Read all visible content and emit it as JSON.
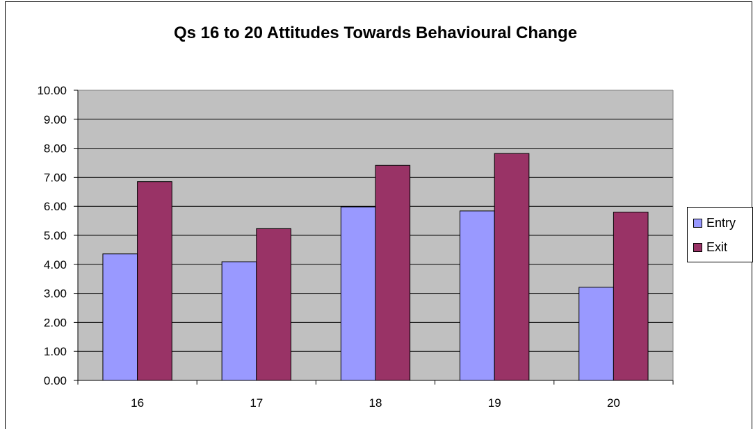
{
  "chart_data": {
    "type": "bar",
    "title": "Qs 16 to 20 Attitudes Towards Behavioural Change",
    "xlabel": "",
    "ylabel": "",
    "categories": [
      "16",
      "17",
      "18",
      "19",
      "20"
    ],
    "series": [
      {
        "name": "Entry",
        "color": "#9999ff",
        "values": [
          4.36,
          4.09,
          5.98,
          5.84,
          3.21
        ]
      },
      {
        "name": "Exit",
        "color": "#993366",
        "values": [
          6.85,
          5.23,
          7.41,
          7.82,
          5.8
        ]
      }
    ],
    "ylim": [
      0,
      10
    ],
    "ytick_step": 1,
    "ytick_labels": [
      "0.00",
      "1.00",
      "2.00",
      "3.00",
      "4.00",
      "5.00",
      "6.00",
      "7.00",
      "8.00",
      "9.00",
      "10.00"
    ],
    "plot_background": "#c0c0c0",
    "grid": true,
    "legend_position": "right"
  }
}
